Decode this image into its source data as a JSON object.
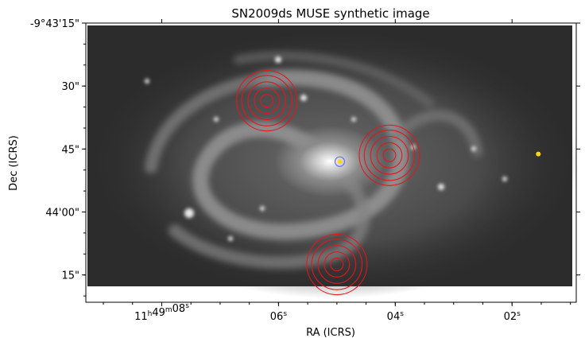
{
  "chart_data": {
    "type": "image",
    "title": "SN2009ds MUSE synthetic image",
    "xlabel": "RA (ICRS)",
    "ylabel": "Dec (ICRS)",
    "colormap": "grayscale",
    "x_ticks": [
      {
        "main": "11",
        "sup1": "h",
        "mid": "49",
        "sup2": "m",
        "end": "08",
        "sup3": "s",
        "ra_sec": 8
      },
      {
        "main": "",
        "sup1": "",
        "mid": "",
        "sup2": "",
        "end": "06",
        "sup3": "s",
        "ra_sec": 6
      },
      {
        "main": "",
        "sup1": "",
        "mid": "",
        "sup2": "",
        "end": "04",
        "sup3": "s",
        "ra_sec": 4
      },
      {
        "main": "",
        "sup1": "",
        "mid": "",
        "sup2": "",
        "end": "02",
        "sup3": "s",
        "ra_sec": 2
      }
    ],
    "y_ticks": [
      {
        "label": "-9°43'15\"",
        "dec_arcsec": 15
      },
      {
        "label": "30\"",
        "dec_arcsec": 30
      },
      {
        "label": "45\"",
        "dec_arcsec": 45
      },
      {
        "label": "44'00\"",
        "dec_arcsec": 60
      },
      {
        "label": "15\"",
        "dec_arcsec": 75
      }
    ],
    "x_range_ra_sec": [
      9.3,
      0.9
    ],
    "y_range_dec_arcsec": [
      15,
      81.5
    ],
    "region_sets": [
      {
        "ra_sec": 6.2,
        "dec_arcsec": 33.5,
        "radii_arcsec": [
          1.5,
          3,
          4.5,
          6,
          7.2
        ],
        "color": "#e8141b"
      },
      {
        "ra_sec": 4.1,
        "dec_arcsec": 46.5,
        "radii_arcsec": [
          1.5,
          3,
          4.5,
          6,
          7.2
        ],
        "color": "#e8141b"
      },
      {
        "ra_sec": 5.0,
        "dec_arcsec": 72.5,
        "radii_arcsec": [
          1.5,
          3,
          4.5,
          6,
          7.2
        ],
        "color": "#e8141b"
      }
    ],
    "sn_marker": {
      "ra_sec": 4.95,
      "dec_arcsec": 48.0,
      "color": "#ffd60a",
      "ring_color": "#6b6bff"
    },
    "star_marker": {
      "ra_sec": 1.55,
      "dec_arcsec": 46.2,
      "color": "#ffd60a"
    }
  }
}
